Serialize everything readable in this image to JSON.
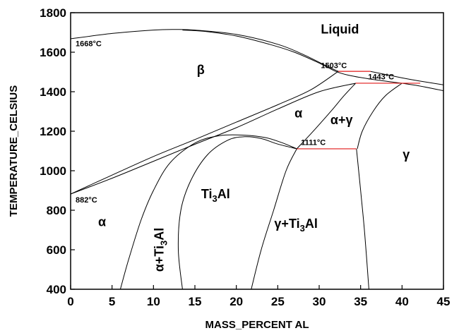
{
  "chart_data": {
    "type": "phase-diagram",
    "xlabel": "MASS_PERCENT AL",
    "ylabel": "TEMPERATURE_CELSIUS",
    "xlim": [
      0,
      45
    ],
    "ylim": [
      400,
      1800
    ],
    "x_ticks": [
      "0",
      "5",
      "10",
      "15",
      "20",
      "25",
      "30",
      "35",
      "40",
      "45"
    ],
    "y_ticks": [
      "400",
      "600",
      "800",
      "1000",
      "1200",
      "1400",
      "1600",
      "1800"
    ],
    "grid": false,
    "colors": {
      "boundaries": "#000000",
      "isotherms": "#e01818"
    },
    "phase_labels": [
      {
        "text": "Liquid",
        "x": 32.5,
        "y": 1695
      },
      {
        "text": "β",
        "x": 15.7,
        "y": 1490
      },
      {
        "text": "α",
        "x": 27.5,
        "y": 1270
      },
      {
        "text": "α+γ",
        "x": 32.7,
        "y": 1235
      },
      {
        "text": "γ",
        "x": 40.5,
        "y": 1060
      },
      {
        "text": "α",
        "x": 3.8,
        "y": 720
      },
      {
        "text": "Ti3Al",
        "x": 17.5,
        "y": 860
      },
      {
        "text": "α+Ti3Al",
        "x": 11.2,
        "y": 600
      },
      {
        "text": "γ+Ti3Al",
        "x": 27.2,
        "y": 710
      }
    ],
    "temperature_labels": [
      {
        "text": "1668°C",
        "x": 0.6,
        "y": 1630
      },
      {
        "text": "1503°C",
        "x": 30.2,
        "y": 1520
      },
      {
        "text": "1443°C",
        "x": 35.9,
        "y": 1462
      },
      {
        "text": "1111°C",
        "x": 27.8,
        "y": 1130
      },
      {
        "text": "882°C",
        "x": 0.6,
        "y": 840
      }
    ],
    "isotherms": [
      {
        "name": "1503°C",
        "y": 1503,
        "x": [
          32.3,
          36.2
        ]
      },
      {
        "name": "1443°C",
        "y": 1443,
        "x": [
          34.4,
          42.2
        ]
      },
      {
        "name": "1111°C",
        "y": 1111,
        "x": [
          27.3,
          34.5
        ]
      }
    ],
    "boundaries": [
      {
        "name": "liquidus-beta",
        "points": [
          [
            0,
            1668
          ],
          [
            5,
            1695
          ],
          [
            10,
            1712
          ],
          [
            12.5,
            1715
          ],
          [
            15,
            1712
          ],
          [
            20,
            1690
          ],
          [
            25,
            1640
          ],
          [
            28,
            1590
          ],
          [
            31,
            1528
          ],
          [
            32.3,
            1503
          ]
        ]
      },
      {
        "name": "solidus-beta",
        "points": [
          [
            13.5,
            1712
          ],
          [
            16,
            1706
          ],
          [
            20,
            1682
          ],
          [
            24,
            1640
          ],
          [
            27,
            1600
          ],
          [
            30,
            1545
          ],
          [
            32,
            1503
          ],
          [
            33.5,
            1484
          ],
          [
            36.2,
            1464
          ],
          [
            40,
            1443
          ]
        ]
      },
      {
        "name": "liquidus-gamma",
        "points": [
          [
            36.2,
            1503
          ],
          [
            40,
            1470
          ],
          [
            42,
            1455
          ],
          [
            45,
            1435
          ]
        ]
      },
      {
        "name": "gamma-liquid-solidus",
        "points": [
          [
            40,
            1443
          ],
          [
            42,
            1430
          ],
          [
            45,
            1405
          ]
        ]
      },
      {
        "name": "beta-transus-upper",
        "points": [
          [
            0,
            882
          ],
          [
            5,
            978
          ],
          [
            10,
            1072
          ],
          [
            15,
            1158
          ],
          [
            20,
            1246
          ],
          [
            25,
            1334
          ],
          [
            29,
            1410
          ],
          [
            32.3,
            1503
          ]
        ]
      },
      {
        "name": "beta-transus-lower",
        "points": [
          [
            0,
            882
          ],
          [
            5,
            962
          ],
          [
            10,
            1048
          ],
          [
            15,
            1134
          ],
          [
            20,
            1218
          ],
          [
            25,
            1312
          ],
          [
            30,
            1400
          ],
          [
            34.4,
            1443
          ]
        ]
      },
      {
        "name": "alpha-gamma-left",
        "points": [
          [
            27.3,
            1111
          ],
          [
            29.5,
            1210
          ],
          [
            31.5,
            1305
          ],
          [
            33,
            1380
          ],
          [
            34.4,
            1443
          ]
        ]
      },
      {
        "name": "alpha-gamma-right",
        "points": [
          [
            34.6,
            1111
          ],
          [
            35.2,
            1200
          ],
          [
            36.5,
            1300
          ],
          [
            38,
            1380
          ],
          [
            40,
            1443
          ]
        ]
      },
      {
        "name": "gamma-solvus",
        "points": [
          [
            34.5,
            1111
          ],
          [
            35,
            900
          ],
          [
            35.5,
            680
          ],
          [
            36,
            400
          ]
        ]
      },
      {
        "name": "ti3al-solvus-right",
        "points": [
          [
            21.8,
            400
          ],
          [
            23,
            600
          ],
          [
            24.5,
            800
          ],
          [
            26,
            1000
          ],
          [
            27.3,
            1111
          ]
        ]
      },
      {
        "name": "alpha-ti3al-dome",
        "points": [
          [
            6,
            400
          ],
          [
            7,
            550
          ],
          [
            8.5,
            750
          ],
          [
            10,
            900
          ],
          [
            12,
            1040
          ],
          [
            15,
            1140
          ],
          [
            18,
            1178
          ],
          [
            21,
            1180
          ],
          [
            23.5,
            1168
          ],
          [
            25.5,
            1142
          ],
          [
            27.3,
            1111
          ]
        ]
      },
      {
        "name": "ti3al-inner-dome",
        "points": [
          [
            13.5,
            400
          ],
          [
            13,
            600
          ],
          [
            13.3,
            800
          ],
          [
            14.5,
            950
          ],
          [
            16.5,
            1080
          ],
          [
            19,
            1155
          ],
          [
            21,
            1172
          ],
          [
            23,
            1163
          ],
          [
            25,
            1135
          ],
          [
            27.3,
            1111
          ]
        ]
      }
    ]
  }
}
